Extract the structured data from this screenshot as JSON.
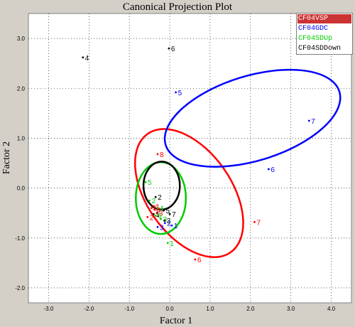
{
  "chart_data": {
    "type": "scatter",
    "title": "Canonical Projection Plot",
    "xlabel": "Factor 1",
    "ylabel": "Factor 2",
    "xlim": [
      -3.5,
      4.5
    ],
    "ylim": [
      -2.3,
      3.5
    ],
    "x_ticks": [
      "-3.0",
      "-2.0",
      "-1.0",
      "0.0",
      "1.0",
      "2.0",
      "3.0",
      "4.0"
    ],
    "x_tick_values": [
      -3,
      -2,
      -1,
      0,
      1,
      2,
      3,
      4
    ],
    "y_ticks": [
      "3.0",
      "2.0",
      "1.0",
      "0.0",
      "-1.0",
      "-2.0"
    ],
    "y_tick_values": [
      3,
      2,
      1,
      0,
      -1,
      -2
    ],
    "grid": true,
    "legend_position": "top-right",
    "series": [
      {
        "name": "CF04VSP",
        "color": "#ff0000",
        "legend_bg": "#cc3333",
        "legend_text_color": "#ffffff",
        "points": [
          {
            "label": "8",
            "x": -0.3,
            "y": 0.68
          },
          {
            "label": "7",
            "x": 2.1,
            "y": -0.68
          },
          {
            "label": "6",
            "x": 0.63,
            "y": -1.43
          },
          {
            "label": "2",
            "x": -0.55,
            "y": -0.58
          },
          {
            "label": "4",
            "x": -0.38,
            "y": -0.43
          },
          {
            "label": "5",
            "x": -0.45,
            "y": -0.4
          },
          {
            "label": "3",
            "x": -0.32,
            "y": -0.5
          },
          {
            "label": "1",
            "x": -0.4,
            "y": -0.36
          }
        ],
        "ellipse": {
          "cx": 0.48,
          "cy": -0.1,
          "rx": 1.05,
          "ry": 1.45,
          "angle": -35
        }
      },
      {
        "name": "CF04GDC",
        "color": "#0000ff",
        "legend_bg": "#ffffff",
        "legend_text_color": "#0000ff",
        "points": [
          {
            "label": "5",
            "x": 0.15,
            "y": 1.92
          },
          {
            "label": "7",
            "x": 3.45,
            "y": 1.35
          },
          {
            "label": "6",
            "x": 2.45,
            "y": 0.38
          },
          {
            "label": "3",
            "x": -0.3,
            "y": -0.78
          },
          {
            "label": "1",
            "x": 0.05,
            "y": -0.75
          },
          {
            "label": "2",
            "x": -0.12,
            "y": -0.7
          }
        ],
        "ellipse": {
          "cx": 2.05,
          "cy": 1.4,
          "rx": 2.25,
          "ry": 0.85,
          "angle": -17
        }
      },
      {
        "name": "CF04SDUp",
        "color": "#00cc00",
        "legend_bg": "#ffffff",
        "legend_text_color": "#00cc00",
        "points": [
          {
            "label": "5",
            "x": -0.6,
            "y": 0.12
          },
          {
            "label": "2",
            "x": -0.5,
            "y": -0.25
          },
          {
            "label": "4",
            "x": -0.3,
            "y": -0.4
          },
          {
            "label": "3",
            "x": -0.22,
            "y": -0.62
          },
          {
            "label": "1",
            "x": -0.05,
            "y": -1.1
          },
          {
            "label": "6",
            "x": -0.35,
            "y": -0.55
          }
        ],
        "ellipse": {
          "cx": -0.22,
          "cy": -0.2,
          "rx": 0.62,
          "ry": 0.72,
          "angle": 0
        }
      },
      {
        "name": "CF04SDDown",
        "color": "#000000",
        "legend_bg": "#ffffff",
        "legend_text_color": "#000000",
        "points": [
          {
            "label": "6",
            "x": -0.02,
            "y": 2.8
          },
          {
            "label": "4",
            "x": -2.15,
            "y": 2.62
          },
          {
            "label": "2",
            "x": -0.35,
            "y": -0.18
          },
          {
            "label": "5",
            "x": -0.15,
            "y": -0.45
          },
          {
            "label": "7",
            "x": 0.0,
            "y": -0.52
          },
          {
            "label": "3",
            "x": -0.13,
            "y": -0.65
          },
          {
            "label": "1",
            "x": -0.4,
            "y": -0.52
          }
        ],
        "ellipse": {
          "cx": -0.2,
          "cy": 0.05,
          "rx": 0.45,
          "ry": 0.48,
          "angle": 0
        }
      }
    ]
  }
}
